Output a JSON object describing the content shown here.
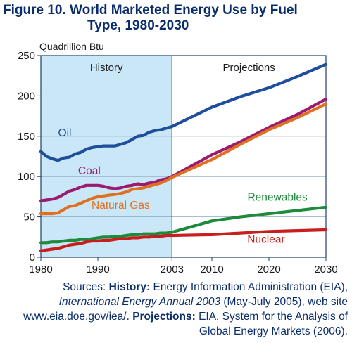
{
  "figure": {
    "title_line1": "Figure 10.  World Marketed Energy Use by Fuel",
    "title_line2": "Type, 1980-2030"
  },
  "source": {
    "prefix": "Sources: ",
    "history_label": "History:",
    "history_text": " Energy Information Administration (EIA), ",
    "history_pub": "International Energy Annual 2003",
    "history_text2": " (May-July 2005), web site www.eia.doe.gov/iea/. ",
    "projections_label": "Projections:",
    "projections_text": " EIA, System for the Analysis of Global Energy Markets (2006)."
  },
  "chart_data": {
    "type": "line",
    "ylabel": "Quadrillion Btu",
    "ylim": [
      0,
      250
    ],
    "xlim": [
      1980,
      2030
    ],
    "yticks": [
      0,
      50,
      100,
      150,
      200,
      250
    ],
    "xticks": [
      "1980",
      "1990",
      "2003",
      "2010",
      "2020",
      "2030"
    ],
    "xtick_values": [
      1980,
      1990,
      2003,
      2010,
      2020,
      2030
    ],
    "regions": [
      {
        "label": "History",
        "from": 1980,
        "to": 2003,
        "color": "#c9e7f6"
      },
      {
        "label": "Projections",
        "from": 2003,
        "to": 2030,
        "color": "#ffffff"
      }
    ],
    "grid": "horizontal",
    "legend": "inline labels",
    "series": [
      {
        "name": "Oil",
        "color": "#1f4e9c",
        "x": [
          1980,
          1981,
          1982,
          1983,
          1984,
          1985,
          1986,
          1987,
          1988,
          1989,
          1990,
          1991,
          1992,
          1993,
          1994,
          1995,
          1996,
          1997,
          1998,
          1999,
          2000,
          2001,
          2002,
          2003,
          2010,
          2015,
          2020,
          2025,
          2030
        ],
        "values": [
          131,
          125,
          122,
          120,
          123,
          124,
          128,
          130,
          134,
          136,
          137,
          138,
          138,
          138,
          140,
          142,
          146,
          150,
          151,
          155,
          157,
          158,
          160,
          162,
          186,
          199,
          210,
          224,
          239
        ]
      },
      {
        "name": "Coal",
        "color": "#9b1c6e",
        "x": [
          1980,
          1981,
          1982,
          1983,
          1984,
          1985,
          1986,
          1987,
          1988,
          1989,
          1990,
          1991,
          1992,
          1993,
          1994,
          1995,
          1996,
          1997,
          1998,
          1999,
          2000,
          2001,
          2002,
          2003,
          2010,
          2015,
          2020,
          2025,
          2030
        ],
        "values": [
          70,
          71,
          72,
          74,
          78,
          82,
          84,
          87,
          89,
          89,
          89,
          88,
          86,
          85,
          86,
          88,
          89,
          91,
          90,
          92,
          93,
          96,
          97,
          100,
          127,
          143,
          161,
          177,
          196
        ]
      },
      {
        "name": "Natural Gas",
        "color": "#e07020",
        "x": [
          1980,
          1981,
          1982,
          1983,
          1984,
          1985,
          1986,
          1987,
          1988,
          1989,
          1990,
          1991,
          1992,
          1993,
          1994,
          1995,
          1996,
          1997,
          1998,
          1999,
          2000,
          2001,
          2002,
          2003,
          2010,
          2015,
          2020,
          2025,
          2030
        ],
        "values": [
          54,
          54,
          54,
          55,
          59,
          63,
          64,
          67,
          70,
          73,
          75,
          76,
          77,
          78,
          79,
          81,
          84,
          85,
          86,
          88,
          90,
          92,
          95,
          99,
          121,
          140,
          158,
          173,
          190
        ]
      },
      {
        "name": "Renewables",
        "color": "#1e8a3c",
        "x": [
          1980,
          1981,
          1982,
          1983,
          1984,
          1985,
          1986,
          1987,
          1988,
          1989,
          1990,
          1991,
          1992,
          1993,
          1994,
          1995,
          1996,
          1997,
          1998,
          1999,
          2000,
          2001,
          2002,
          2003,
          2010,
          2015,
          2020,
          2025,
          2030
        ],
        "values": [
          18,
          18,
          19,
          19,
          20,
          21,
          21,
          22,
          22,
          23,
          24,
          25,
          25,
          26,
          26,
          27,
          28,
          28,
          29,
          29,
          29,
          30,
          30,
          31,
          45,
          50,
          54,
          58,
          62
        ]
      },
      {
        "name": "Nuclear",
        "color": "#c81e1e",
        "x": [
          1980,
          1981,
          1982,
          1983,
          1984,
          1985,
          1986,
          1987,
          1988,
          1989,
          1990,
          1991,
          1992,
          1993,
          1994,
          1995,
          1996,
          1997,
          1998,
          1999,
          2000,
          2001,
          2002,
          2003,
          2010,
          2015,
          2020,
          2025,
          2030
        ],
        "values": [
          8,
          9,
          10,
          11,
          13,
          15,
          16,
          17,
          19,
          20,
          20,
          21,
          21,
          22,
          23,
          23,
          24,
          24,
          25,
          25,
          26,
          26,
          27,
          27,
          28,
          30,
          32,
          33,
          34
        ]
      }
    ]
  }
}
